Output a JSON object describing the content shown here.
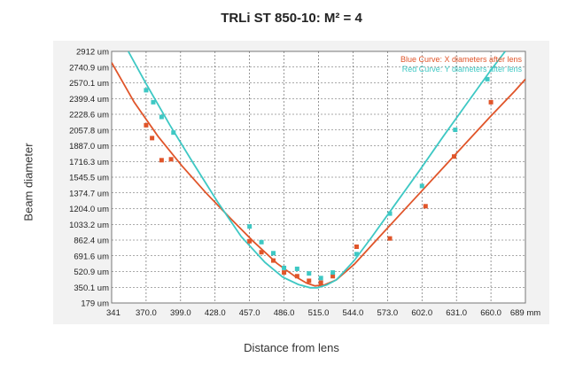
{
  "chart_data": {
    "type": "scatter",
    "title": "TRLi ST 850-10: M² = 4",
    "xlabel": "Distance from lens",
    "ylabel": "Beam diameter",
    "x_unit": "mm",
    "y_unit": "um",
    "xlim": [
      341,
      689
    ],
    "ylim": [
      179,
      2912
    ],
    "x_ticks": [
      "341",
      "370.0",
      "399.0",
      "428.0",
      "457.0",
      "486.0",
      "515.0",
      "544.0",
      "573.0",
      "602.0",
      "631.0",
      "660.0",
      "689 mm"
    ],
    "y_ticks": [
      "179 um",
      "350.1 um",
      "520.9 um",
      "691.6 um",
      "862.4 um",
      "1033.2 um",
      "1204.0 um",
      "1374.7 um",
      "1545.5 um",
      "1716.3 um",
      "1887.0 um",
      "2057.8 um",
      "2228.6 um",
      "2399.4 um",
      "2570.1 um",
      "2740.9 um",
      "2912 um"
    ],
    "grid": true,
    "legend_position": "top-right",
    "series": [
      {
        "name": "Blue Curve: X diameters after lens",
        "color": "#e0552a",
        "points": [
          [
            370,
            2110
          ],
          [
            375,
            1970
          ],
          [
            383,
            1730
          ],
          [
            391,
            1740
          ],
          [
            457,
            850
          ],
          [
            467,
            730
          ],
          [
            477,
            640
          ],
          [
            486,
            510
          ],
          [
            497,
            470
          ],
          [
            507,
            420
          ],
          [
            517,
            400
          ],
          [
            527,
            470
          ],
          [
            547,
            790
          ],
          [
            575,
            880
          ],
          [
            605,
            1230
          ],
          [
            629,
            1770
          ],
          [
            660,
            2360
          ]
        ],
        "fit_curve": [
          [
            341,
            2790
          ],
          [
            360,
            2360
          ],
          [
            380,
            1990
          ],
          [
            400,
            1670
          ],
          [
            420,
            1380
          ],
          [
            440,
            1110
          ],
          [
            460,
            850
          ],
          [
            480,
            610
          ],
          [
            495,
            470
          ],
          [
            505,
            395
          ],
          [
            512,
            365
          ],
          [
            520,
            375
          ],
          [
            530,
            430
          ],
          [
            545,
            600
          ],
          [
            560,
            810
          ],
          [
            580,
            1090
          ],
          [
            600,
            1370
          ],
          [
            620,
            1650
          ],
          [
            640,
            1930
          ],
          [
            660,
            2210
          ],
          [
            680,
            2480
          ],
          [
            689,
            2610
          ]
        ]
      },
      {
        "name": "Red Curve: Y diameters after lens",
        "color": "#3ec8c4",
        "points": [
          [
            370,
            2490
          ],
          [
            376,
            2360
          ],
          [
            383,
            2200
          ],
          [
            393,
            2030
          ],
          [
            457,
            1010
          ],
          [
            467,
            840
          ],
          [
            477,
            720
          ],
          [
            486,
            560
          ],
          [
            497,
            550
          ],
          [
            507,
            500
          ],
          [
            517,
            450
          ],
          [
            527,
            510
          ],
          [
            547,
            710
          ],
          [
            575,
            1150
          ],
          [
            602,
            1450
          ],
          [
            630,
            2060
          ],
          [
            657,
            2610
          ]
        ],
        "fit_curve": [
          [
            355,
            2912
          ],
          [
            370,
            2560
          ],
          [
            390,
            2110
          ],
          [
            410,
            1690
          ],
          [
            430,
            1280
          ],
          [
            450,
            900
          ],
          [
            470,
            620
          ],
          [
            485,
            460
          ],
          [
            498,
            380
          ],
          [
            508,
            345
          ],
          [
            514,
            345
          ],
          [
            522,
            375
          ],
          [
            530,
            430
          ],
          [
            545,
            640
          ],
          [
            560,
            900
          ],
          [
            580,
            1260
          ],
          [
            600,
            1620
          ],
          [
            620,
            1990
          ],
          [
            640,
            2350
          ],
          [
            660,
            2710
          ],
          [
            672,
            2912
          ]
        ]
      }
    ]
  }
}
